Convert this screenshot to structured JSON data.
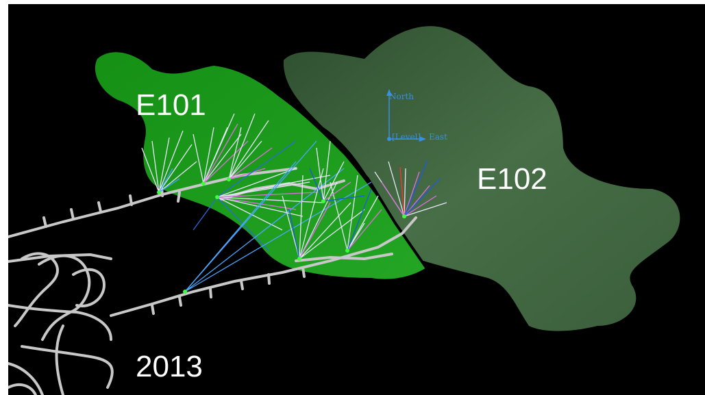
{
  "labels": {
    "zone_a": "E101",
    "zone_b": "E102",
    "year": "2013"
  },
  "orientation": {
    "north": "North",
    "level": "[Level]",
    "east": "East"
  },
  "colors": {
    "background": "#000000",
    "frame": "#ffffff",
    "zone_a": "#1e9e1e",
    "zone_b": "#3f6a3f",
    "tunnels": "#c8c8c8",
    "axis": "#3a8fe0",
    "drillholes_primary": "#e8e8f8",
    "drillholes_secondary": "#e070e0"
  }
}
